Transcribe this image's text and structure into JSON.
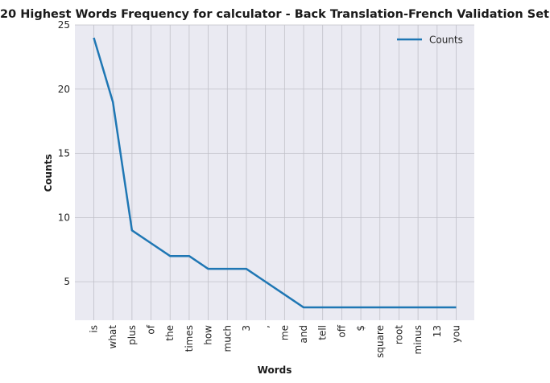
{
  "chart_data": {
    "type": "line",
    "title": "20 Highest Words Frequency for calculator - Back Translation-French Validation Set",
    "xlabel": "Words",
    "ylabel": "Counts",
    "categories": [
      "is",
      "what",
      "plus",
      "of",
      "the",
      "times",
      "how",
      "much",
      "3",
      ",",
      "me",
      "and",
      "tell",
      "off",
      "$",
      "square",
      "root",
      "minus",
      "13",
      "you"
    ],
    "series": [
      {
        "name": "Counts",
        "color": "#1f77b4",
        "values": [
          24,
          19,
          9,
          8,
          7,
          7,
          6,
          6,
          6,
          5,
          4,
          3,
          3,
          3,
          3,
          3,
          3,
          3,
          3,
          3
        ]
      }
    ],
    "ylim": [
      2,
      25
    ],
    "yticks": [
      5,
      10,
      15,
      20,
      25
    ],
    "grid": true,
    "legend_position": "top-right"
  }
}
